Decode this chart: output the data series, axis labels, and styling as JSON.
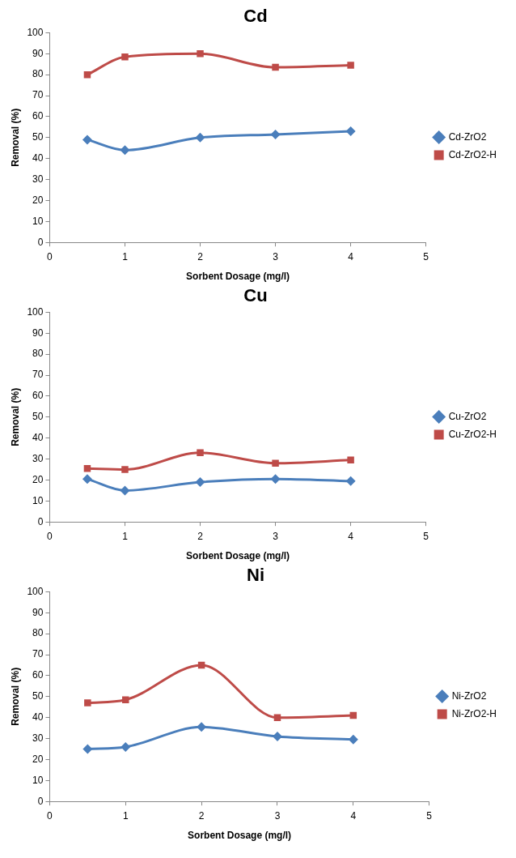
{
  "chart_data": [
    {
      "type": "line",
      "title": "Cd",
      "xlabel": "Sorbent Dosage (mg/l)",
      "ylabel": "Removal (%)",
      "x": [
        0.5,
        1,
        2,
        3,
        4
      ],
      "xlim": [
        0,
        5
      ],
      "xticks": [
        0,
        1,
        2,
        3,
        4,
        5
      ],
      "ylim": [
        0,
        100
      ],
      "yticks": [
        0,
        10,
        20,
        30,
        40,
        50,
        60,
        70,
        80,
        90,
        100
      ],
      "grid": false,
      "legend": "right",
      "series": [
        {
          "name": "Cd-ZrO2",
          "color": "#4a7ebb",
          "marker": "diamond",
          "values": [
            49,
            44,
            50,
            51.5,
            53
          ]
        },
        {
          "name": "Cd-ZrO2-H",
          "color": "#be4b48",
          "marker": "square",
          "values": [
            80,
            88.5,
            90,
            83.5,
            84.5
          ]
        }
      ]
    },
    {
      "type": "line",
      "title": "Cu",
      "xlabel": "Sorbent Dosage (mg/l)",
      "ylabel": "Removal (%)",
      "x": [
        0.5,
        1,
        2,
        3,
        4
      ],
      "xlim": [
        0,
        5
      ],
      "xticks": [
        0,
        1,
        2,
        3,
        4,
        5
      ],
      "ylim": [
        0,
        100
      ],
      "yticks": [
        0,
        10,
        20,
        30,
        40,
        50,
        60,
        70,
        80,
        90,
        100
      ],
      "grid": false,
      "legend": "right",
      "series": [
        {
          "name": "Cu-ZrO2",
          "color": "#4a7ebb",
          "marker": "diamond",
          "values": [
            20.5,
            15,
            19,
            20.5,
            19.5
          ]
        },
        {
          "name": "Cu-ZrO2-H",
          "color": "#be4b48",
          "marker": "square",
          "values": [
            25.5,
            25,
            33,
            28,
            29.5
          ]
        }
      ]
    },
    {
      "type": "line",
      "title": "Ni",
      "xlabel": "Sorbent Dosage (mg/l)",
      "ylabel": "Removal (%)",
      "x": [
        0.5,
        1,
        2,
        3,
        4
      ],
      "xlim": [
        0,
        5
      ],
      "xticks": [
        0,
        1,
        2,
        3,
        4,
        5
      ],
      "ylim": [
        0,
        100
      ],
      "yticks": [
        0,
        10,
        20,
        30,
        40,
        50,
        60,
        70,
        80,
        90,
        100
      ],
      "grid": false,
      "legend": "right",
      "series": [
        {
          "name": "Ni-ZrO2",
          "color": "#4a7ebb",
          "marker": "diamond",
          "values": [
            25,
            26,
            35.5,
            31,
            29.5
          ]
        },
        {
          "name": "Ni-ZrO2-H",
          "color": "#be4b48",
          "marker": "square",
          "values": [
            47,
            48.5,
            65,
            40,
            41
          ]
        }
      ]
    }
  ]
}
